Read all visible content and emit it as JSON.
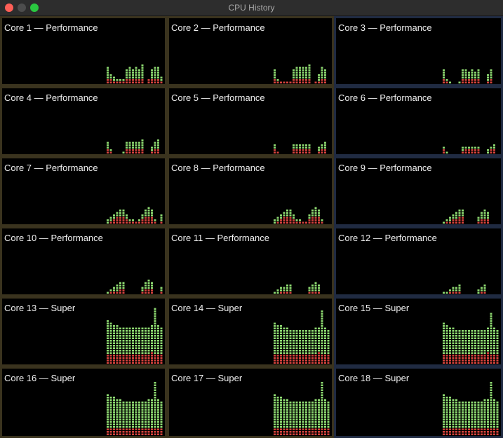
{
  "window": {
    "title": "CPU History"
  },
  "colors": {
    "user": "#8fdc72",
    "system": "#d6433d",
    "borderPerformance": "#3a331e",
    "borderSuper": "#202b42"
  },
  "cores": [
    {
      "label": "Core 1 — Performance",
      "bars": [
        [
          2,
          7
        ],
        [
          2,
          4
        ],
        [
          1,
          3
        ],
        [
          1,
          2
        ],
        [
          1,
          2
        ],
        [
          1,
          2
        ],
        [
          2,
          6
        ],
        [
          2,
          7
        ],
        [
          2,
          6
        ],
        [
          2,
          7
        ],
        [
          2,
          6
        ],
        [
          2,
          8
        ],
        [
          0,
          0
        ],
        [
          2,
          2
        ],
        [
          2,
          6
        ],
        [
          2,
          7
        ],
        [
          2,
          7
        ],
        [
          1,
          3
        ]
      ]
    },
    {
      "label": "Core 2 — Performance",
      "bars": [
        [
          2,
          6
        ],
        [
          1,
          2
        ],
        [
          1,
          1
        ],
        [
          1,
          1
        ],
        [
          1,
          1
        ],
        [
          1,
          1
        ],
        [
          2,
          6
        ],
        [
          2,
          7
        ],
        [
          2,
          7
        ],
        [
          2,
          7
        ],
        [
          2,
          7
        ],
        [
          2,
          8
        ],
        [
          0,
          0
        ],
        [
          1,
          1
        ],
        [
          1,
          4
        ],
        [
          2,
          7
        ],
        [
          2,
          6
        ],
        [
          0,
          0
        ]
      ]
    },
    {
      "label": "Core 3 — Performance",
      "bars": [
        [
          2,
          6
        ],
        [
          1,
          2
        ],
        [
          0,
          1
        ],
        [
          0,
          0
        ],
        [
          0,
          0
        ],
        [
          0,
          1
        ],
        [
          2,
          6
        ],
        [
          2,
          6
        ],
        [
          2,
          5
        ],
        [
          2,
          6
        ],
        [
          2,
          5
        ],
        [
          2,
          6
        ],
        [
          0,
          0
        ],
        [
          0,
          0
        ],
        [
          1,
          4
        ],
        [
          2,
          6
        ],
        [
          0,
          0
        ],
        [
          0,
          0
        ]
      ]
    },
    {
      "label": "Core 4 — Performance",
      "bars": [
        [
          2,
          5
        ],
        [
          1,
          2
        ],
        [
          0,
          0
        ],
        [
          0,
          0
        ],
        [
          0,
          0
        ],
        [
          0,
          1
        ],
        [
          2,
          5
        ],
        [
          2,
          5
        ],
        [
          2,
          5
        ],
        [
          2,
          5
        ],
        [
          2,
          5
        ],
        [
          2,
          6
        ],
        [
          0,
          0
        ],
        [
          0,
          0
        ],
        [
          1,
          3
        ],
        [
          2,
          5
        ],
        [
          2,
          6
        ],
        [
          0,
          0
        ]
      ]
    },
    {
      "label": "Core 5 — Performance",
      "bars": [
        [
          2,
          4
        ],
        [
          1,
          1
        ],
        [
          0,
          0
        ],
        [
          0,
          0
        ],
        [
          0,
          0
        ],
        [
          0,
          0
        ],
        [
          2,
          4
        ],
        [
          2,
          4
        ],
        [
          2,
          4
        ],
        [
          2,
          4
        ],
        [
          2,
          4
        ],
        [
          2,
          4
        ],
        [
          0,
          0
        ],
        [
          0,
          0
        ],
        [
          1,
          3
        ],
        [
          2,
          4
        ],
        [
          2,
          5
        ],
        [
          0,
          0
        ]
      ]
    },
    {
      "label": "Core 6 — Performance",
      "bars": [
        [
          2,
          3
        ],
        [
          0,
          1
        ],
        [
          0,
          0
        ],
        [
          0,
          0
        ],
        [
          0,
          0
        ],
        [
          0,
          0
        ],
        [
          1,
          3
        ],
        [
          2,
          3
        ],
        [
          2,
          3
        ],
        [
          2,
          3
        ],
        [
          2,
          3
        ],
        [
          2,
          3
        ],
        [
          0,
          0
        ],
        [
          0,
          0
        ],
        [
          0,
          2
        ],
        [
          2,
          3
        ],
        [
          2,
          4
        ],
        [
          0,
          0
        ]
      ]
    },
    {
      "label": "Core 7 — Performance",
      "bars": [
        [
          0,
          2
        ],
        [
          1,
          3
        ],
        [
          2,
          4
        ],
        [
          3,
          5
        ],
        [
          3,
          6
        ],
        [
          3,
          6
        ],
        [
          2,
          4
        ],
        [
          1,
          2
        ],
        [
          1,
          2
        ],
        [
          1,
          1
        ],
        [
          1,
          2
        ],
        [
          2,
          4
        ],
        [
          3,
          6
        ],
        [
          3,
          7
        ],
        [
          3,
          6
        ],
        [
          1,
          2
        ],
        [
          0,
          0
        ],
        [
          1,
          4
        ]
      ]
    },
    {
      "label": "Core 8 — Performance",
      "bars": [
        [
          0,
          2
        ],
        [
          1,
          3
        ],
        [
          2,
          4
        ],
        [
          3,
          5
        ],
        [
          3,
          6
        ],
        [
          3,
          6
        ],
        [
          2,
          4
        ],
        [
          1,
          2
        ],
        [
          1,
          2
        ],
        [
          1,
          1
        ],
        [
          1,
          1
        ],
        [
          2,
          4
        ],
        [
          3,
          6
        ],
        [
          3,
          7
        ],
        [
          3,
          6
        ],
        [
          1,
          2
        ],
        [
          0,
          0
        ],
        [
          0,
          0
        ]
      ]
    },
    {
      "label": "Core 9 — Performance",
      "bars": [
        [
          0,
          1
        ],
        [
          1,
          2
        ],
        [
          1,
          3
        ],
        [
          2,
          4
        ],
        [
          2,
          5
        ],
        [
          3,
          6
        ],
        [
          3,
          6
        ],
        [
          0,
          0
        ],
        [
          0,
          0
        ],
        [
          0,
          0
        ],
        [
          0,
          0
        ],
        [
          1,
          3
        ],
        [
          2,
          5
        ],
        [
          2,
          6
        ],
        [
          2,
          5
        ],
        [
          0,
          0
        ],
        [
          0,
          0
        ],
        [
          0,
          0
        ]
      ]
    },
    {
      "label": "Core 10 — Performance",
      "bars": [
        [
          0,
          1
        ],
        [
          1,
          2
        ],
        [
          1,
          3
        ],
        [
          1,
          4
        ],
        [
          2,
          5
        ],
        [
          2,
          5
        ],
        [
          0,
          0
        ],
        [
          0,
          0
        ],
        [
          0,
          0
        ],
        [
          0,
          0
        ],
        [
          0,
          0
        ],
        [
          1,
          3
        ],
        [
          2,
          5
        ],
        [
          2,
          6
        ],
        [
          2,
          5
        ],
        [
          0,
          0
        ],
        [
          0,
          0
        ],
        [
          1,
          3
        ]
      ]
    },
    {
      "label": "Core 11 — Performance",
      "bars": [
        [
          0,
          1
        ],
        [
          0,
          2
        ],
        [
          1,
          3
        ],
        [
          1,
          3
        ],
        [
          1,
          4
        ],
        [
          1,
          4
        ],
        [
          0,
          0
        ],
        [
          0,
          0
        ],
        [
          0,
          0
        ],
        [
          0,
          0
        ],
        [
          0,
          0
        ],
        [
          1,
          3
        ],
        [
          1,
          4
        ],
        [
          1,
          5
        ],
        [
          1,
          4
        ],
        [
          0,
          0
        ],
        [
          0,
          0
        ],
        [
          0,
          0
        ]
      ]
    },
    {
      "label": "Core 12 — Performance",
      "bars": [
        [
          0,
          1
        ],
        [
          0,
          1
        ],
        [
          1,
          2
        ],
        [
          1,
          3
        ],
        [
          1,
          3
        ],
        [
          1,
          4
        ],
        [
          0,
          0
        ],
        [
          0,
          0
        ],
        [
          0,
          0
        ],
        [
          0,
          0
        ],
        [
          0,
          0
        ],
        [
          0,
          2
        ],
        [
          1,
          3
        ],
        [
          1,
          4
        ],
        [
          0,
          0
        ],
        [
          0,
          0
        ],
        [
          0,
          0
        ],
        [
          0,
          0
        ]
      ]
    },
    {
      "label": "Core 13 — Super",
      "bars": [
        [
          4,
          18
        ],
        [
          4,
          17
        ],
        [
          4,
          16
        ],
        [
          4,
          16
        ],
        [
          4,
          15
        ],
        [
          4,
          15
        ],
        [
          4,
          15
        ],
        [
          4,
          15
        ],
        [
          4,
          15
        ],
        [
          4,
          15
        ],
        [
          4,
          15
        ],
        [
          4,
          15
        ],
        [
          4,
          15
        ],
        [
          4,
          15
        ],
        [
          5,
          16
        ],
        [
          4,
          23
        ],
        [
          4,
          16
        ],
        [
          4,
          15
        ]
      ]
    },
    {
      "label": "Core 14 — Super",
      "bars": [
        [
          4,
          17
        ],
        [
          4,
          16
        ],
        [
          4,
          16
        ],
        [
          4,
          15
        ],
        [
          4,
          15
        ],
        [
          4,
          14
        ],
        [
          4,
          14
        ],
        [
          4,
          14
        ],
        [
          4,
          14
        ],
        [
          4,
          14
        ],
        [
          4,
          14
        ],
        [
          4,
          14
        ],
        [
          4,
          14
        ],
        [
          4,
          15
        ],
        [
          5,
          15
        ],
        [
          4,
          22
        ],
        [
          4,
          15
        ],
        [
          4,
          14
        ]
      ]
    },
    {
      "label": "Core 15 — Super",
      "bars": [
        [
          4,
          17
        ],
        [
          4,
          16
        ],
        [
          4,
          15
        ],
        [
          4,
          15
        ],
        [
          4,
          14
        ],
        [
          4,
          14
        ],
        [
          4,
          14
        ],
        [
          4,
          14
        ],
        [
          4,
          14
        ],
        [
          4,
          14
        ],
        [
          4,
          14
        ],
        [
          4,
          14
        ],
        [
          4,
          14
        ],
        [
          4,
          14
        ],
        [
          5,
          15
        ],
        [
          4,
          21
        ],
        [
          4,
          15
        ],
        [
          4,
          14
        ]
      ]
    },
    {
      "label": "Core 16 — Super",
      "bars": [
        [
          3,
          17
        ],
        [
          3,
          16
        ],
        [
          3,
          16
        ],
        [
          3,
          15
        ],
        [
          3,
          15
        ],
        [
          3,
          14
        ],
        [
          3,
          14
        ],
        [
          3,
          14
        ],
        [
          3,
          14
        ],
        [
          3,
          14
        ],
        [
          3,
          14
        ],
        [
          3,
          14
        ],
        [
          3,
          14
        ],
        [
          3,
          15
        ],
        [
          3,
          15
        ],
        [
          3,
          22
        ],
        [
          3,
          15
        ],
        [
          3,
          14
        ]
      ]
    },
    {
      "label": "Core 17 — Super",
      "bars": [
        [
          3,
          17
        ],
        [
          3,
          16
        ],
        [
          3,
          16
        ],
        [
          3,
          15
        ],
        [
          3,
          15
        ],
        [
          3,
          14
        ],
        [
          3,
          14
        ],
        [
          3,
          14
        ],
        [
          3,
          14
        ],
        [
          3,
          14
        ],
        [
          3,
          14
        ],
        [
          3,
          14
        ],
        [
          3,
          14
        ],
        [
          3,
          15
        ],
        [
          3,
          15
        ],
        [
          3,
          22
        ],
        [
          3,
          15
        ],
        [
          3,
          14
        ]
      ]
    },
    {
      "label": "Core 18 — Super",
      "bars": [
        [
          3,
          17
        ],
        [
          3,
          16
        ],
        [
          3,
          16
        ],
        [
          3,
          15
        ],
        [
          3,
          15
        ],
        [
          3,
          14
        ],
        [
          3,
          14
        ],
        [
          3,
          14
        ],
        [
          3,
          14
        ],
        [
          3,
          14
        ],
        [
          3,
          14
        ],
        [
          3,
          14
        ],
        [
          3,
          14
        ],
        [
          3,
          15
        ],
        [
          3,
          15
        ],
        [
          3,
          22
        ],
        [
          3,
          15
        ],
        [
          3,
          14
        ]
      ]
    }
  ]
}
